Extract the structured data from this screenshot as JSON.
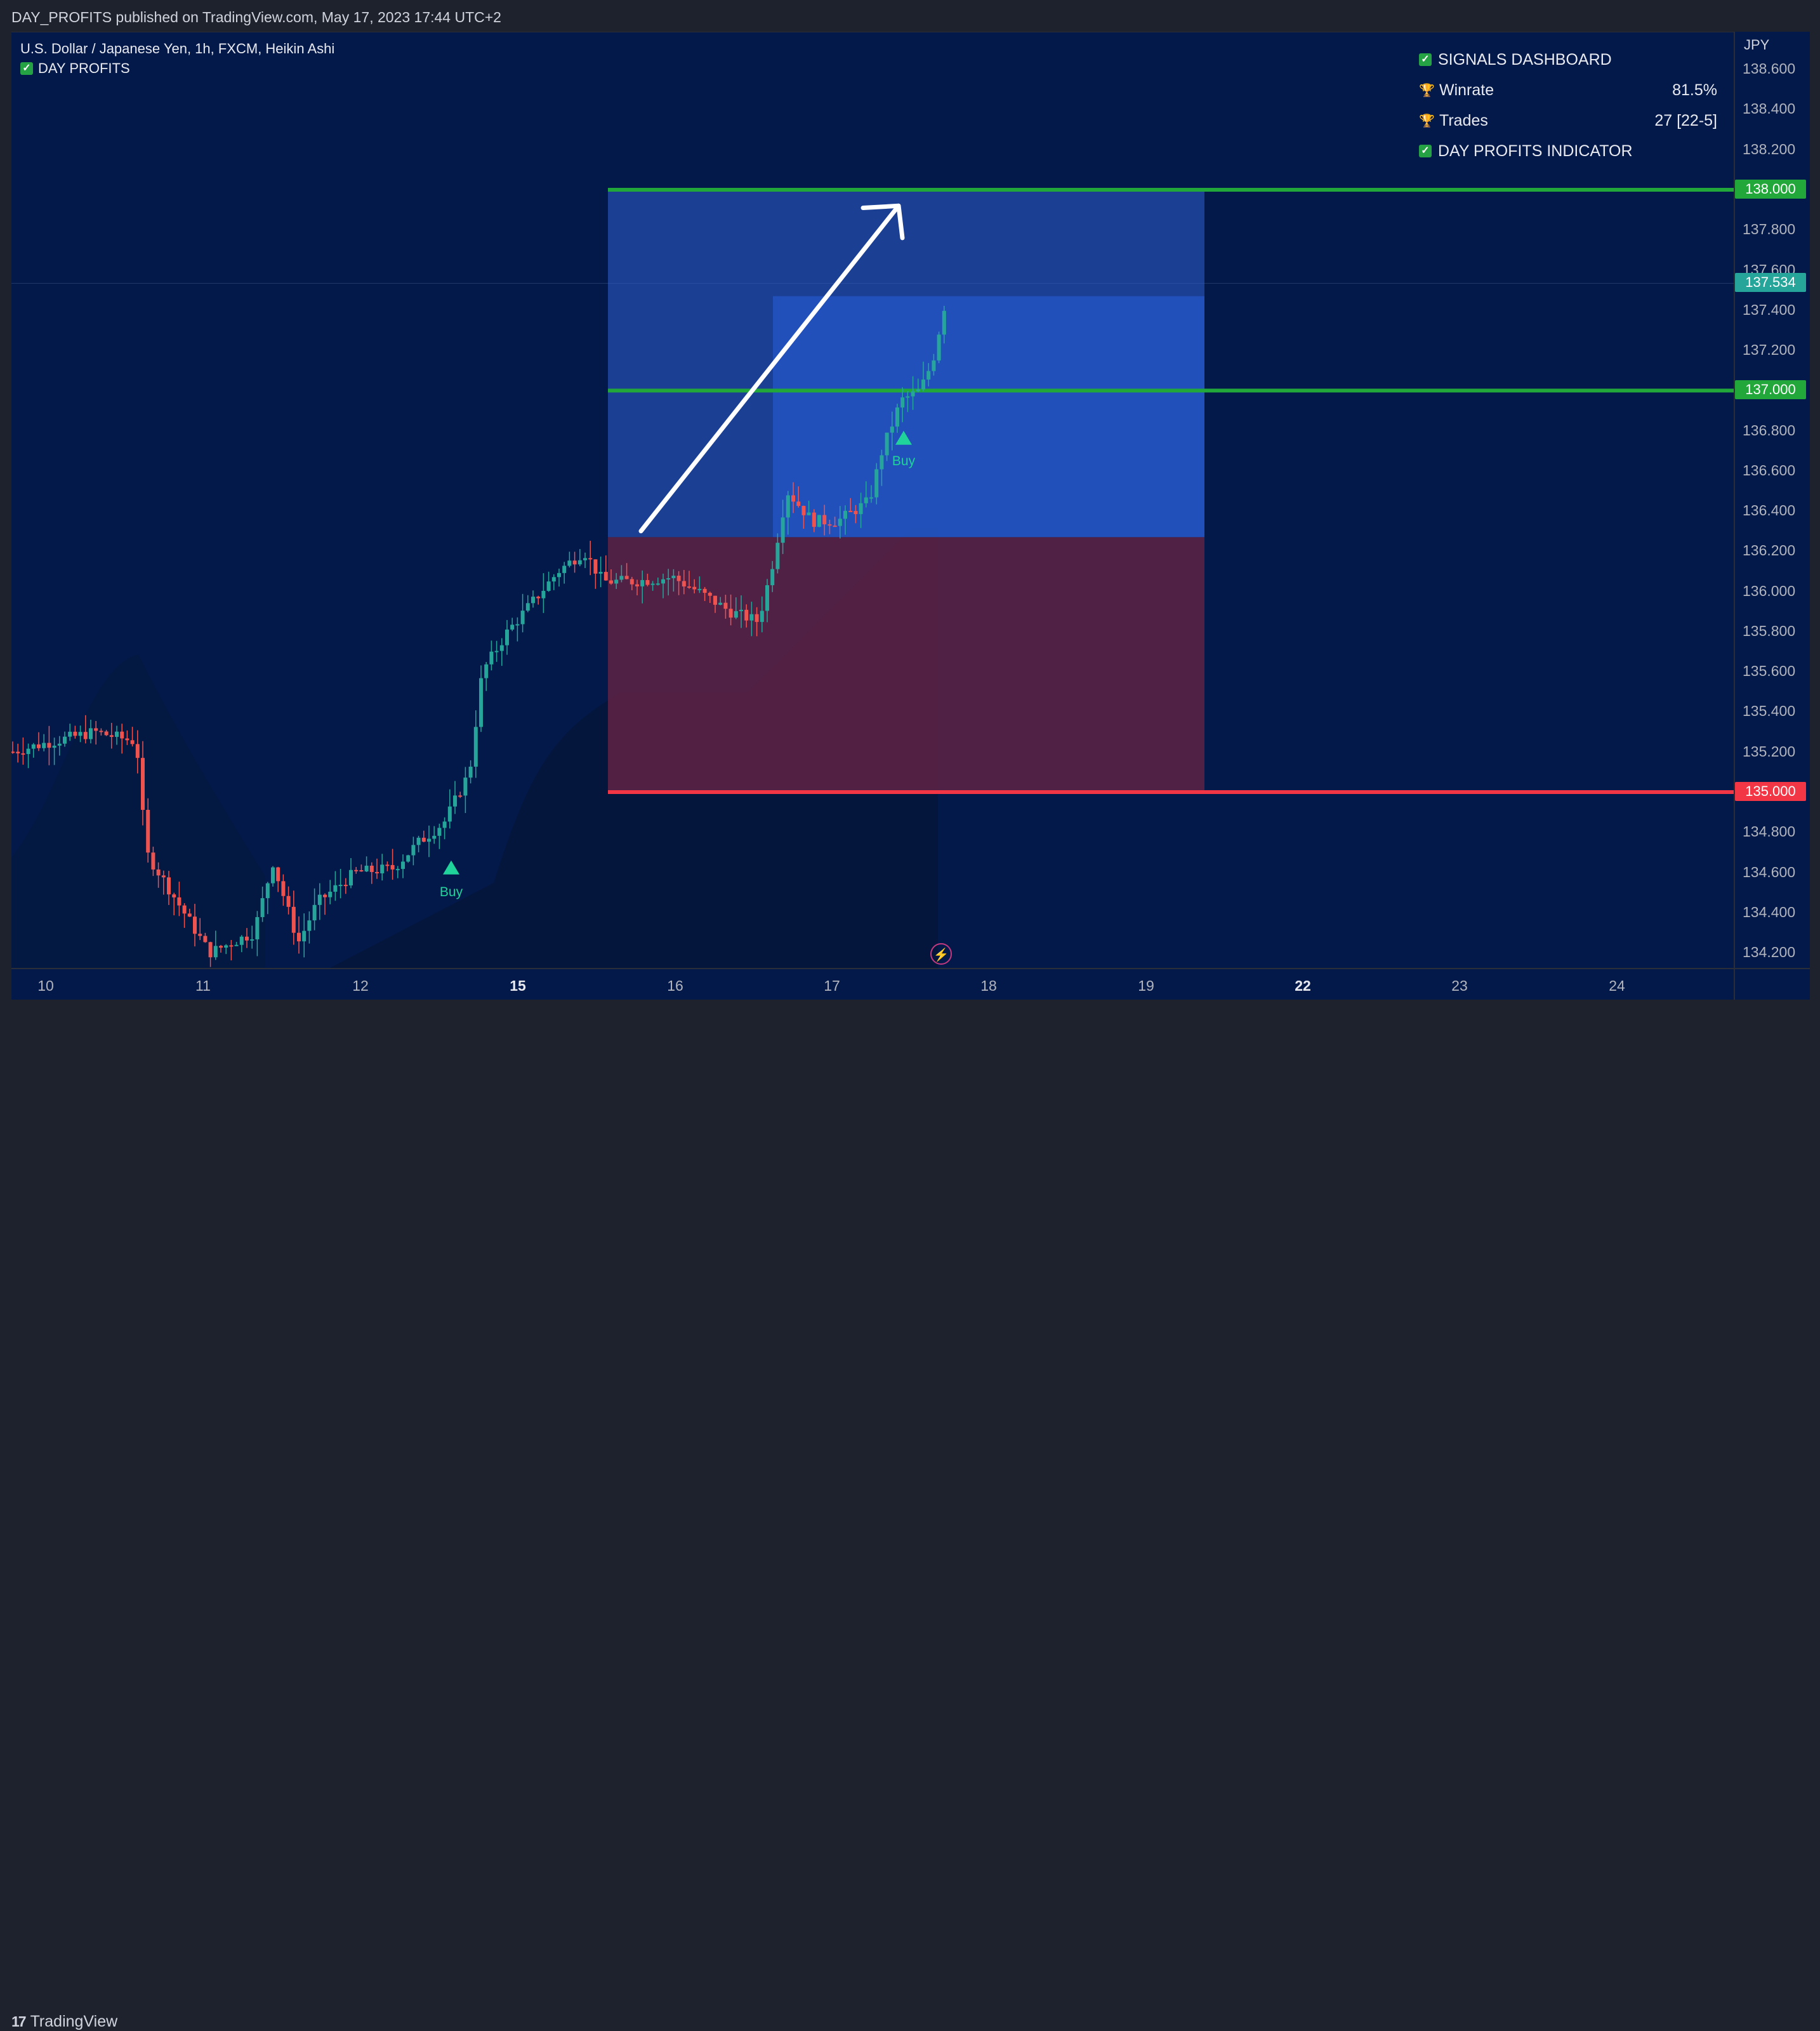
{
  "header": {
    "published_text": "DAY_PROFITS published on TradingView.com, May 17, 2023 17:44 UTC+2"
  },
  "chart": {
    "symbol_title": "U.S. Dollar / Japanese Yen, 1h, FXCM, Heikin Ashi",
    "indicator_name": "DAY PROFITS",
    "currency": "JPY",
    "price_ticks": [
      "138.600",
      "138.400",
      "138.200",
      "137.800",
      "137.600",
      "137.400",
      "137.200",
      "136.800",
      "136.600",
      "136.400",
      "136.200",
      "136.000",
      "135.800",
      "135.600",
      "135.400",
      "135.200",
      "134.800",
      "134.600",
      "134.400",
      "134.200"
    ],
    "price_labels": [
      {
        "text": "138.000",
        "color": "#22a83a"
      },
      {
        "text": "137.534",
        "color": "#26a69a"
      },
      {
        "text": "137.000",
        "color": "#22a83a"
      },
      {
        "text": "135.000",
        "color": "#f23645"
      }
    ],
    "date_ticks": [
      {
        "label": "10",
        "major": false
      },
      {
        "label": "11",
        "major": false
      },
      {
        "label": "12",
        "major": false
      },
      {
        "label": "15",
        "major": true
      },
      {
        "label": "16",
        "major": false
      },
      {
        "label": "17",
        "major": false
      },
      {
        "label": "18",
        "major": false
      },
      {
        "label": "19",
        "major": false
      },
      {
        "label": "22",
        "major": true
      },
      {
        "label": "23",
        "major": false
      },
      {
        "label": "24",
        "major": false
      }
    ],
    "buy_signals": [
      "Buy",
      "Buy"
    ],
    "colors": {
      "background": "#03194a",
      "up": "#26a69a",
      "down": "#ef5350",
      "target_line": "#22a83a",
      "stop_line": "#f23645",
      "profit_zone": "#2f5fd0",
      "loss_zone": "#6b2444"
    }
  },
  "dashboard": {
    "title": "SIGNALS DASHBOARD",
    "rows": [
      {
        "label": "Winrate",
        "value": "81.5%"
      },
      {
        "label": "Trades",
        "value": "27 [22-5]"
      }
    ],
    "footer": "DAY PROFITS INDICATOR"
  },
  "footer": {
    "brand": "TradingView"
  }
}
